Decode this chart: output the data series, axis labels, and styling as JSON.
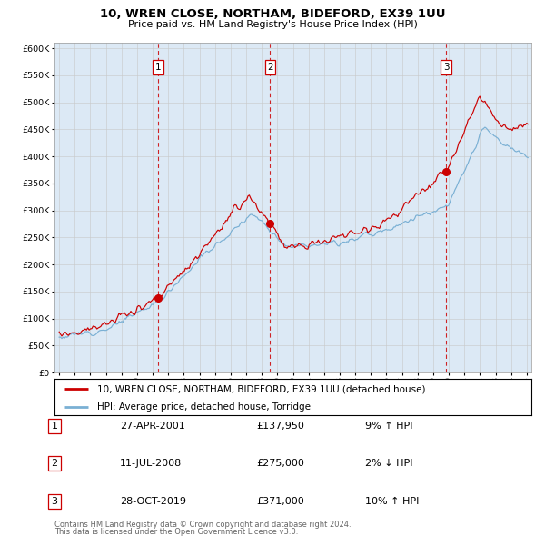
{
  "title1": "10, WREN CLOSE, NORTHAM, BIDEFORD, EX39 1UU",
  "title2": "Price paid vs. HM Land Registry's House Price Index (HPI)",
  "plot_bg_color": "#dce9f5",
  "sale_year_nums": [
    2001.33,
    2008.54,
    2019.83
  ],
  "sale_prices": [
    137950,
    275000,
    371000
  ],
  "sale_labels": [
    "1",
    "2",
    "3"
  ],
  "sale_info": [
    {
      "num": "1",
      "date": "27-APR-2001",
      "price": "£137,950",
      "pct": "9% ↑ HPI"
    },
    {
      "num": "2",
      "date": "11-JUL-2008",
      "price": "£275,000",
      "pct": "2% ↓ HPI"
    },
    {
      "num": "3",
      "date": "28-OCT-2019",
      "price": "£371,000",
      "pct": "10% ↑ HPI"
    }
  ],
  "legend_line1": "10, WREN CLOSE, NORTHAM, BIDEFORD, EX39 1UU (detached house)",
  "legend_line2": "HPI: Average price, detached house, Torridge",
  "footer1": "Contains HM Land Registry data © Crown copyright and database right 2024.",
  "footer2": "This data is licensed under the Open Government Licence v3.0.",
  "red_color": "#cc0000",
  "blue_color": "#7ab0d4",
  "ylim": [
    0,
    610000
  ],
  "yticks": [
    0,
    50000,
    100000,
    150000,
    200000,
    250000,
    300000,
    350000,
    400000,
    450000,
    500000,
    550000,
    600000
  ],
  "xlim_start": 1994.7,
  "xlim_end": 2025.3
}
